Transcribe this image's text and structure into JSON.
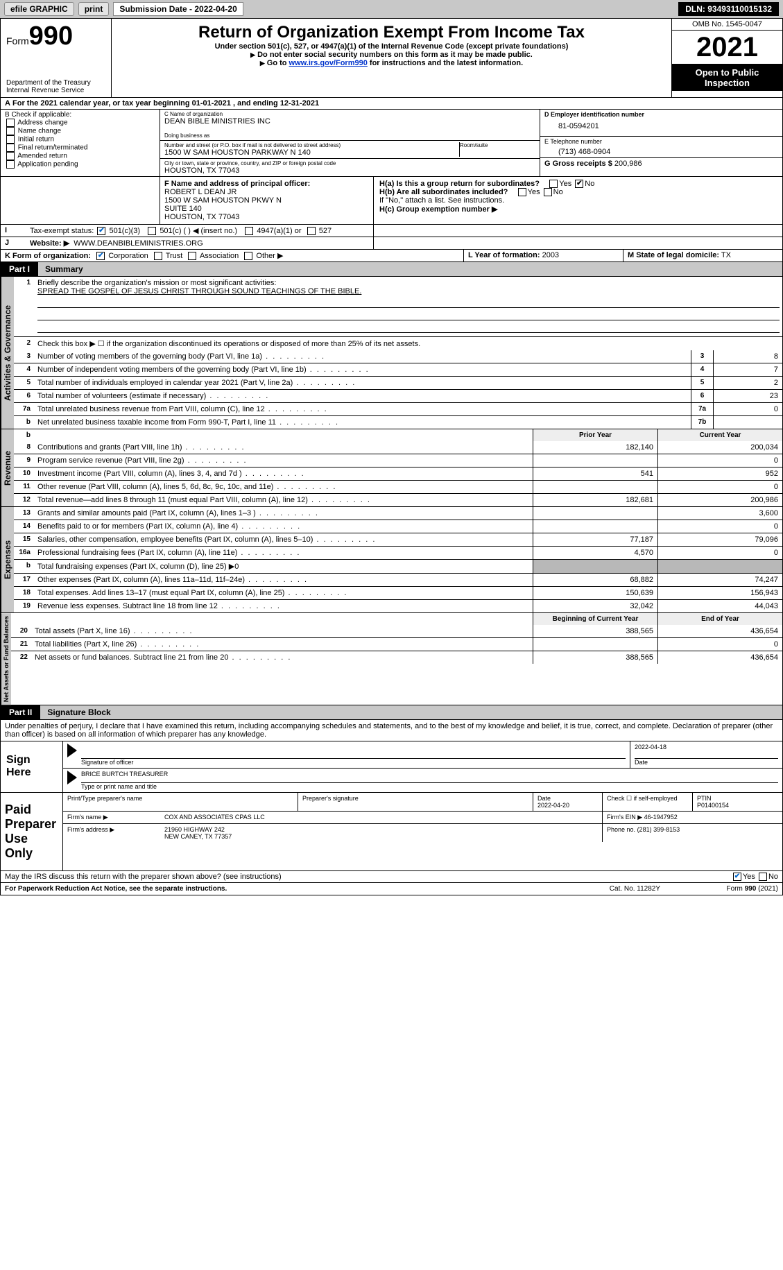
{
  "topbar": {
    "efile": "efile GRAPHIC",
    "print": "print",
    "submission_label": "Submission Date - 2022-04-20",
    "dln": "DLN: 93493110015132"
  },
  "header": {
    "form_word": "Form",
    "form_num": "990",
    "dept": "Department of the Treasury",
    "irs": "Internal Revenue Service",
    "title": "Return of Organization Exempt From Income Tax",
    "subtitle": "Under section 501(c), 527, or 4947(a)(1) of the Internal Revenue Code (except private foundations)",
    "note1": "Do not enter social security numbers on this form as it may be made public.",
    "note2_pre": "Go to ",
    "note2_link": "www.irs.gov/Form990",
    "note2_post": " for instructions and the latest information.",
    "omb": "OMB No. 1545-0047",
    "year": "2021",
    "open": "Open to Public Inspection"
  },
  "A": {
    "text": "For the 2021 calendar year, or tax year beginning ",
    "begin": "01-01-2021",
    "mid": " , and ending ",
    "end": "12-31-2021"
  },
  "B": {
    "label": "B Check if applicable:",
    "opts": [
      "Address change",
      "Name change",
      "Initial return",
      "Final return/terminated",
      "Amended return",
      "Application pending"
    ]
  },
  "C": {
    "name_label": "C Name of organization",
    "name": "DEAN BIBLE MINISTRIES INC",
    "dba_label": "Doing business as",
    "addr_label": "Number and street (or P.O. box if mail is not delivered to street address)",
    "room_label": "Room/suite",
    "addr": "1500 W SAM HOUSTON PARKWAY N 140",
    "city_label": "City or town, state or province, country, and ZIP or foreign postal code",
    "city": "HOUSTON, TX  77043"
  },
  "D": {
    "label": "D Employer identification number",
    "value": "81-0594201"
  },
  "E": {
    "label": "E Telephone number",
    "value": "(713) 468-0904"
  },
  "G": {
    "label": "G Gross receipts $",
    "value": "200,986"
  },
  "F": {
    "label": "F Name and address of principal officer:",
    "name": "ROBERT L DEAN JR",
    "addr1": "1500 W SAM HOUSTON PKWY N",
    "addr2": "SUITE 140",
    "city": "HOUSTON, TX  77043"
  },
  "H": {
    "a_label": "H(a)  Is this a group return for subordinates?",
    "b_label": "H(b)  Are all subordinates included?",
    "b_note": "If \"No,\" attach a list. See instructions.",
    "c_label": "H(c)  Group exemption number ▶"
  },
  "I": {
    "label": "Tax-exempt status:",
    "opts": [
      "501(c)(3)",
      "501(c) (  ) ◀ (insert no.)",
      "4947(a)(1) or",
      "527"
    ]
  },
  "J": {
    "label": "Website: ▶",
    "value": "WWW.DEANBIBLEMINISTRIES.ORG"
  },
  "K": {
    "label": "K Form of organization:",
    "opts": [
      "Corporation",
      "Trust",
      "Association",
      "Other ▶"
    ]
  },
  "L": {
    "label": "L Year of formation:",
    "value": "2003"
  },
  "M": {
    "label": "M State of legal domicile:",
    "value": "TX"
  },
  "part1": {
    "num": "Part I",
    "title": "Summary"
  },
  "governance": {
    "label": "Activities & Governance",
    "l1": "Briefly describe the organization's mission or most significant activities:",
    "l1v": "SPREAD THE GOSPEL OF JESUS CHRIST THROUGH SOUND TEACHINGS OF THE BIBLE.",
    "l2": "Check this box ▶ ☐  if the organization discontinued its operations or disposed of more than 25% of its net assets.",
    "rows": [
      {
        "n": "3",
        "t": "Number of voting members of the governing body (Part VI, line 1a)",
        "box": "3",
        "v": "8"
      },
      {
        "n": "4",
        "t": "Number of independent voting members of the governing body (Part VI, line 1b)",
        "box": "4",
        "v": "7"
      },
      {
        "n": "5",
        "t": "Total number of individuals employed in calendar year 2021 (Part V, line 2a)",
        "box": "5",
        "v": "2"
      },
      {
        "n": "6",
        "t": "Total number of volunteers (estimate if necessary)",
        "box": "6",
        "v": "23"
      },
      {
        "n": "7a",
        "t": "Total unrelated business revenue from Part VIII, column (C), line 12",
        "box": "7a",
        "v": "0"
      },
      {
        "n": "b",
        "t": "Net unrelated business taxable income from Form 990-T, Part I, line 11",
        "box": "7b",
        "v": ""
      }
    ]
  },
  "revenue": {
    "label": "Revenue",
    "hdr_prior": "Prior Year",
    "hdr_current": "Current Year",
    "rows": [
      {
        "n": "8",
        "t": "Contributions and grants (Part VIII, line 1h)",
        "p": "182,140",
        "c": "200,034"
      },
      {
        "n": "9",
        "t": "Program service revenue (Part VIII, line 2g)",
        "p": "",
        "c": "0"
      },
      {
        "n": "10",
        "t": "Investment income (Part VIII, column (A), lines 3, 4, and 7d )",
        "p": "541",
        "c": "952"
      },
      {
        "n": "11",
        "t": "Other revenue (Part VIII, column (A), lines 5, 6d, 8c, 9c, 10c, and 11e)",
        "p": "",
        "c": "0"
      },
      {
        "n": "12",
        "t": "Total revenue—add lines 8 through 11 (must equal Part VIII, column (A), line 12)",
        "p": "182,681",
        "c": "200,986"
      }
    ]
  },
  "expenses": {
    "label": "Expenses",
    "rows": [
      {
        "n": "13",
        "t": "Grants and similar amounts paid (Part IX, column (A), lines 1–3 )",
        "p": "",
        "c": "3,600"
      },
      {
        "n": "14",
        "t": "Benefits paid to or for members (Part IX, column (A), line 4)",
        "p": "",
        "c": "0"
      },
      {
        "n": "15",
        "t": "Salaries, other compensation, employee benefits (Part IX, column (A), lines 5–10)",
        "p": "77,187",
        "c": "79,096"
      },
      {
        "n": "16a",
        "t": "Professional fundraising fees (Part IX, column (A), line 11e)",
        "p": "4,570",
        "c": "0"
      },
      {
        "n": "b",
        "t": "Total fundraising expenses (Part IX, column (D), line 25) ▶0",
        "p": "GRAY",
        "c": "GRAY"
      },
      {
        "n": "17",
        "t": "Other expenses (Part IX, column (A), lines 11a–11d, 11f–24e)",
        "p": "68,882",
        "c": "74,247"
      },
      {
        "n": "18",
        "t": "Total expenses. Add lines 13–17 (must equal Part IX, column (A), line 25)",
        "p": "150,639",
        "c": "156,943"
      },
      {
        "n": "19",
        "t": "Revenue less expenses. Subtract line 18 from line 12",
        "p": "32,042",
        "c": "44,043"
      }
    ]
  },
  "netassets": {
    "label": "Net Assets or Fund Balances",
    "hdr_begin": "Beginning of Current Year",
    "hdr_end": "End of Year",
    "rows": [
      {
        "n": "20",
        "t": "Total assets (Part X, line 16)",
        "p": "388,565",
        "c": "436,654"
      },
      {
        "n": "21",
        "t": "Total liabilities (Part X, line 26)",
        "p": "",
        "c": "0"
      },
      {
        "n": "22",
        "t": "Net assets or fund balances. Subtract line 21 from line 20",
        "p": "388,565",
        "c": "436,654"
      }
    ]
  },
  "part2": {
    "num": "Part II",
    "title": "Signature Block"
  },
  "declaration": "Under penalties of perjury, I declare that I have examined this return, including accompanying schedules and statements, and to the best of my knowledge and belief, it is true, correct, and complete. Declaration of preparer (other than officer) is based on all information of which preparer has any knowledge.",
  "sign": {
    "left": "Sign Here",
    "sig_label": "Signature of officer",
    "date": "2022-04-18",
    "date_label": "Date",
    "name": "BRICE BURTCH  TREASURER",
    "name_label": "Type or print name and title"
  },
  "paid": {
    "left": "Paid Preparer Use Only",
    "h1": "Print/Type preparer's name",
    "h2": "Preparer's signature",
    "h3_label": "Date",
    "h3": "2022-04-20",
    "h4": "Check ☐ if self-employed",
    "h5_label": "PTIN",
    "h5": "P01400154",
    "firm_label": "Firm's name    ▶",
    "firm": "COX AND ASSOCIATES CPAS LLC",
    "ein_label": "Firm's EIN ▶",
    "ein": "46-1947952",
    "addr_label": "Firm's address ▶",
    "addr1": "21960 HIGHWAY 242",
    "addr2": "NEW CANEY, TX  77357",
    "phone_label": "Phone no.",
    "phone": "(281) 399-8153"
  },
  "footer": {
    "q": "May the IRS discuss this return with the preparer shown above? (see instructions)",
    "paperwork_bold": "For Paperwork Reduction Act Notice, see the separate instructions.",
    "cat": "Cat. No. 11282Y",
    "formref": "Form 990 (2021)"
  }
}
